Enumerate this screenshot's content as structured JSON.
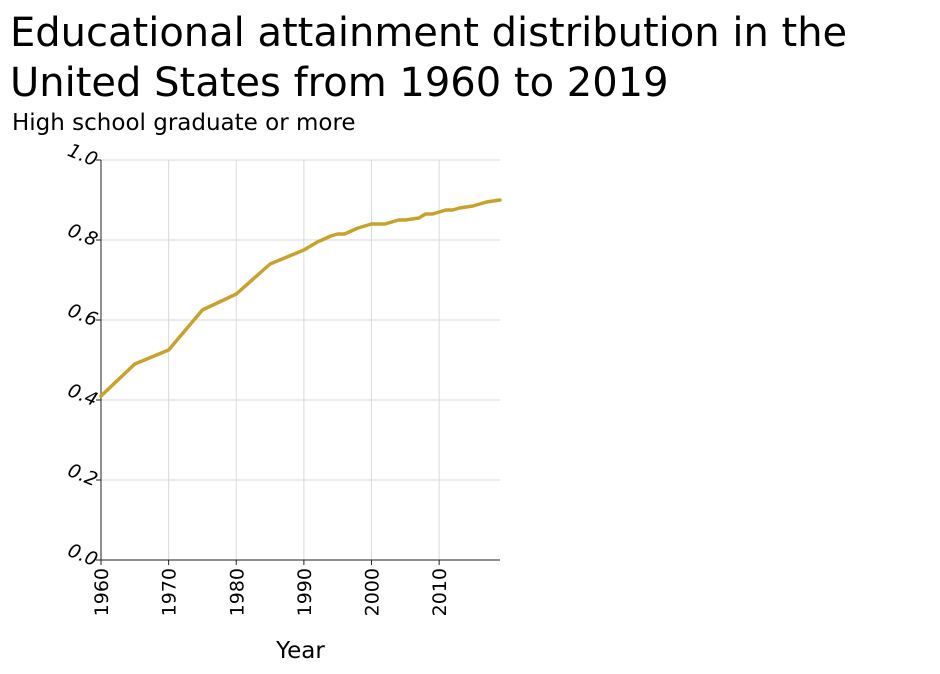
{
  "chart_data": {
    "type": "line",
    "title": "Educational attainment distribution in the United States from 1960 to 2019",
    "ylabel": "High school graduate or more",
    "xlabel": "Year",
    "xlim": [
      1960,
      2019
    ],
    "ylim": [
      0.0,
      1.0
    ],
    "x_ticks": [
      "1960",
      "1970",
      "1980",
      "1990",
      "2000",
      "2010"
    ],
    "y_ticks": [
      "0.0",
      "0.2",
      "0.4",
      "0.6",
      "0.8",
      "1.0"
    ],
    "grid": true,
    "series": [
      {
        "color": "#c9a22c",
        "x": [
          1960,
          1965,
          1970,
          1975,
          1980,
          1985,
          1990,
          1992,
          1994,
          1995,
          1996,
          1998,
          2000,
          2002,
          2004,
          2005,
          2007,
          2008,
          2009,
          2011,
          2012,
          2013,
          2015,
          2016,
          2017,
          2019
        ],
        "y": [
          0.41,
          0.49,
          0.525,
          0.625,
          0.665,
          0.74,
          0.775,
          0.795,
          0.81,
          0.815,
          0.815,
          0.83,
          0.84,
          0.84,
          0.85,
          0.85,
          0.855,
          0.865,
          0.865,
          0.875,
          0.875,
          0.88,
          0.885,
          0.89,
          0.895,
          0.9
        ]
      }
    ]
  }
}
